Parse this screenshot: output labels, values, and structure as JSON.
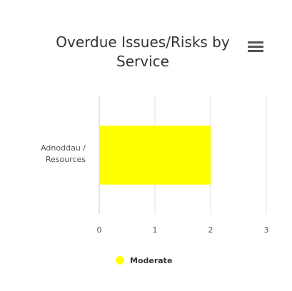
{
  "chart_data": {
    "type": "bar",
    "orientation": "horizontal",
    "title": "Overdue Issues/Risks by Service",
    "categories": [
      "Adnoddau / Resources"
    ],
    "series": [
      {
        "name": "Moderate",
        "color": "#ffff00",
        "values": [
          2
        ]
      }
    ],
    "xlim": [
      0,
      3
    ],
    "xticks": [
      0,
      1,
      2,
      3
    ],
    "grid": true,
    "legend": "bottom"
  }
}
